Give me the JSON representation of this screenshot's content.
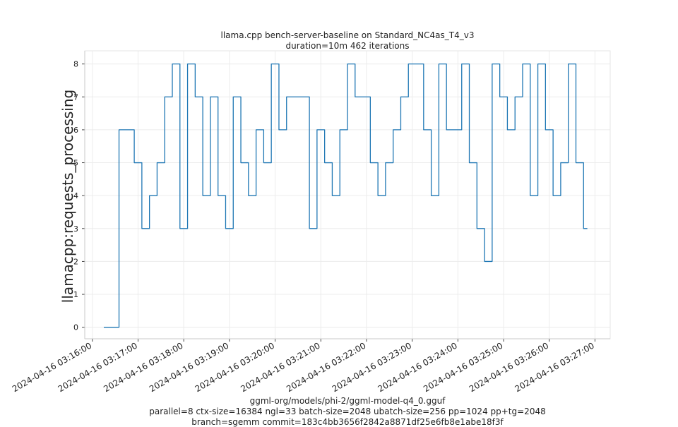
{
  "chart_data": {
    "type": "line",
    "title": "llama.cpp bench-server-baseline on Standard_NC4as_T4_v3",
    "subtitle": "duration=10m 462 iterations",
    "ylabel": "llamacpp:requests_processing",
    "xlabel": "",
    "footer_lines": [
      "ggml-org/models/phi-2/ggml-model-q4_0.gguf",
      "parallel=8 ctx-size=16384 ngl=33 batch-size=2048 ubatch-size=256 pp=1024 pp+tg=2048",
      "branch=sgemm commit=183c4bb3656f2842a8871df25e6fb8e1abe18f3f"
    ],
    "x_tick_labels": [
      "2024-04-16 03:16:00",
      "2024-04-16 03:17:00",
      "2024-04-16 03:18:00",
      "2024-04-16 03:19:00",
      "2024-04-16 03:20:00",
      "2024-04-16 03:21:00",
      "2024-04-16 03:22:00",
      "2024-04-16 03:23:00",
      "2024-04-16 03:24:00",
      "2024-04-16 03:25:00",
      "2024-04-16 03:26:00",
      "2024-04-16 03:27:00"
    ],
    "x_start": "2024-04-16 03:16:00",
    "xlim": [
      "2024-04-16 03:15:50",
      "2024-04-16 03:27:20"
    ],
    "y_ticks": [
      0,
      1,
      2,
      3,
      4,
      5,
      6,
      7,
      8
    ],
    "ylim": [
      -0.35,
      8.4
    ],
    "grid": true,
    "color": "#1f77b4",
    "series": [
      {
        "step": "post",
        "points": [
          [
            "2024-04-16 03:16:15",
            0
          ],
          [
            "2024-04-16 03:16:35",
            6
          ],
          [
            "2024-04-16 03:16:55",
            5
          ],
          [
            "2024-04-16 03:17:05",
            3
          ],
          [
            "2024-04-16 03:17:15",
            4
          ],
          [
            "2024-04-16 03:17:25",
            5
          ],
          [
            "2024-04-16 03:17:35",
            7
          ],
          [
            "2024-04-16 03:17:45",
            8
          ],
          [
            "2024-04-16 03:17:55",
            3
          ],
          [
            "2024-04-16 03:18:05",
            8
          ],
          [
            "2024-04-16 03:18:15",
            7
          ],
          [
            "2024-04-16 03:18:25",
            4
          ],
          [
            "2024-04-16 03:18:35",
            7
          ],
          [
            "2024-04-16 03:18:45",
            4
          ],
          [
            "2024-04-16 03:18:55",
            3
          ],
          [
            "2024-04-16 03:19:05",
            7
          ],
          [
            "2024-04-16 03:19:15",
            5
          ],
          [
            "2024-04-16 03:19:25",
            4
          ],
          [
            "2024-04-16 03:19:35",
            6
          ],
          [
            "2024-04-16 03:19:45",
            5
          ],
          [
            "2024-04-16 03:19:55",
            8
          ],
          [
            "2024-04-16 03:20:05",
            6
          ],
          [
            "2024-04-16 03:20:15",
            7
          ],
          [
            "2024-04-16 03:20:45",
            3
          ],
          [
            "2024-04-16 03:20:55",
            6
          ],
          [
            "2024-04-16 03:21:05",
            5
          ],
          [
            "2024-04-16 03:21:15",
            4
          ],
          [
            "2024-04-16 03:21:25",
            6
          ],
          [
            "2024-04-16 03:21:35",
            8
          ],
          [
            "2024-04-16 03:21:45",
            7
          ],
          [
            "2024-04-16 03:22:05",
            5
          ],
          [
            "2024-04-16 03:22:15",
            4
          ],
          [
            "2024-04-16 03:22:25",
            5
          ],
          [
            "2024-04-16 03:22:35",
            6
          ],
          [
            "2024-04-16 03:22:45",
            7
          ],
          [
            "2024-04-16 03:22:55",
            8
          ],
          [
            "2024-04-16 03:23:15",
            6
          ],
          [
            "2024-04-16 03:23:25",
            4
          ],
          [
            "2024-04-16 03:23:35",
            8
          ],
          [
            "2024-04-16 03:23:45",
            6
          ],
          [
            "2024-04-16 03:24:05",
            8
          ],
          [
            "2024-04-16 03:24:15",
            5
          ],
          [
            "2024-04-16 03:24:25",
            3
          ],
          [
            "2024-04-16 03:24:35",
            2
          ],
          [
            "2024-04-16 03:24:45",
            8
          ],
          [
            "2024-04-16 03:24:55",
            7
          ],
          [
            "2024-04-16 03:25:05",
            6
          ],
          [
            "2024-04-16 03:25:15",
            7
          ],
          [
            "2024-04-16 03:25:25",
            8
          ],
          [
            "2024-04-16 03:25:35",
            4
          ],
          [
            "2024-04-16 03:25:45",
            8
          ],
          [
            "2024-04-16 03:25:55",
            6
          ],
          [
            "2024-04-16 03:26:05",
            4
          ],
          [
            "2024-04-16 03:26:15",
            5
          ],
          [
            "2024-04-16 03:26:25",
            8
          ],
          [
            "2024-04-16 03:26:35",
            5
          ],
          [
            "2024-04-16 03:26:45",
            3
          ],
          [
            "2024-04-16 03:26:50",
            3
          ]
        ]
      }
    ]
  }
}
